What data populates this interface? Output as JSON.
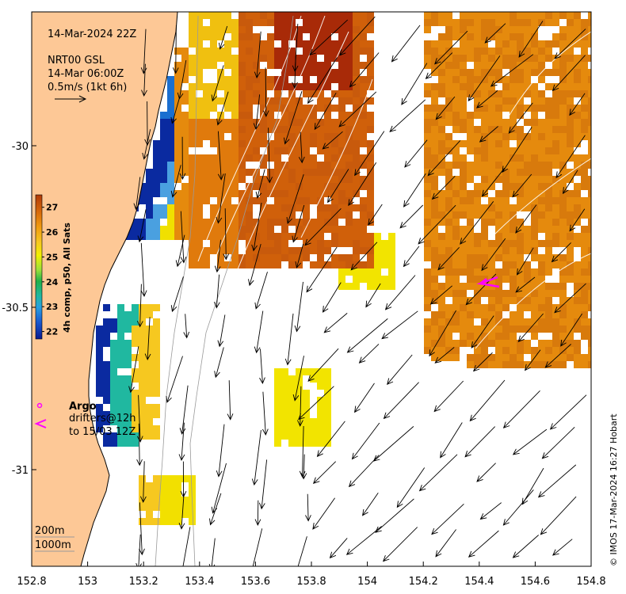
{
  "map": {
    "title_time": "14-Mar-2024 22Z",
    "current_product": "NRT00 GSL",
    "current_time": "14-Mar 06:00Z",
    "scale_arrow_label": "0.5m/s (1kt 6h)",
    "colorbar_label": "4h comp, p50, All Sats",
    "colorbar_ticks": [
      "27",
      "26",
      "25",
      "24",
      "23",
      "22"
    ],
    "colorbar_values": [
      27,
      26,
      25,
      24,
      23,
      22
    ],
    "y_ticks": [
      "-30",
      "-30.5",
      "-31"
    ],
    "x_ticks": [
      "152.8",
      "153",
      "153.2",
      "153.4",
      "153.6",
      "153.8",
      "154",
      "154.2",
      "154.4",
      "154.6",
      "154.8"
    ],
    "legend_argo": "Argo",
    "legend_drifters_line1": "drifters@12h",
    "legend_drifters_line2": "to 15/03 12Z",
    "contour_label_1": "200m",
    "contour_label_2": "1000m",
    "credit": "© IMOS 17-Mar-2024 16:27 Hobart",
    "colors": {
      "land": "#fdc896",
      "drifter": "#ff00ff",
      "warm": "#e58a0d",
      "hot": "#b03a08",
      "cool": "#1a6fd0",
      "mid": "#f0e000"
    }
  }
}
